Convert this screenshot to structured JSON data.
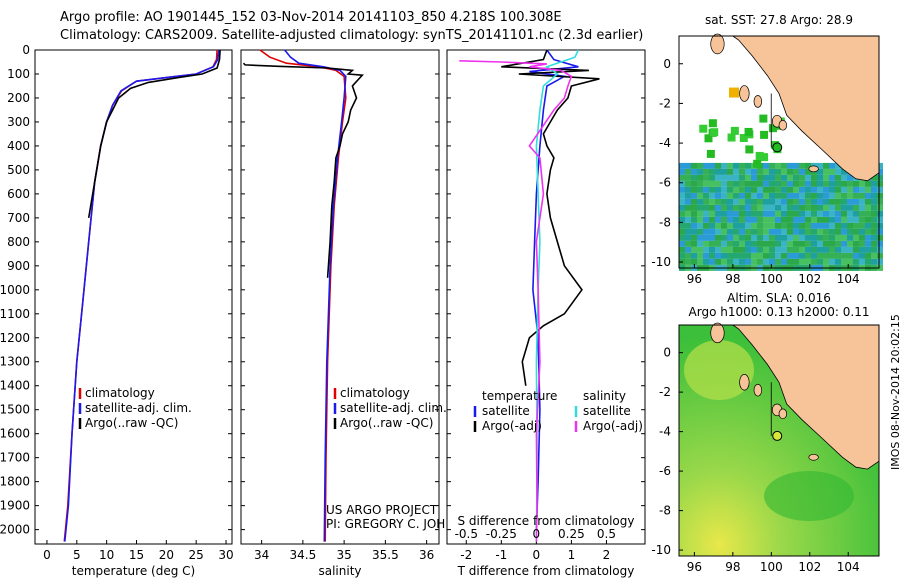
{
  "header": {
    "line1": "Argo profile: AO 1901445_152 03-Nov-2014 20141103_850 4.218S 100.308E",
    "line2": "Climatology: CARS2009. Satellite-adjusted climatology: synTS_20141101.nc (2.3d earlier)"
  },
  "stamp": "IMOS 08-Nov-2014 20:02:15",
  "colors": {
    "climatology": "#e00000",
    "satellite": "#1a1aee",
    "argo": "#000000",
    "sal_sat": "#33dddd",
    "sal_argo": "#ee33ee",
    "land": "#f7c49a"
  },
  "chart_data": [
    {
      "type": "line",
      "name": "temperature-profile",
      "xlabel": "temperature (deg C)",
      "ylabel": "",
      "xlim": [
        -2,
        31
      ],
      "ylim": [
        2060,
        0
      ],
      "xticks": [
        0,
        5,
        10,
        15,
        20,
        25,
        30
      ],
      "yticks": [
        0,
        100,
        200,
        300,
        400,
        500,
        600,
        700,
        800,
        900,
        1000,
        1100,
        1200,
        1300,
        1400,
        1500,
        1600,
        1700,
        1800,
        1900,
        2000
      ],
      "legend": [
        "climatology",
        "satellite-adj. clim.",
        "Argo(..raw -QC)"
      ],
      "series": [
        {
          "name": "climatology",
          "color": "#e00000",
          "x": [
            28.5,
            28.4,
            27.8,
            25,
            20,
            15,
            12.5,
            11,
            10,
            9,
            8,
            7,
            6,
            5,
            4.2,
            3.5,
            2.9
          ],
          "depth": [
            0,
            40,
            70,
            100,
            115,
            130,
            170,
            230,
            300,
            400,
            550,
            800,
            1050,
            1300,
            1600,
            1900,
            2050
          ]
        },
        {
          "name": "satellite-adj. clim.",
          "color": "#1a1aee",
          "x": [
            28.8,
            28.6,
            27.9,
            25,
            20,
            15,
            12.4,
            11,
            10,
            9,
            8,
            7,
            6,
            5,
            4.2,
            3.6,
            3.0
          ],
          "depth": [
            0,
            40,
            70,
            100,
            115,
            130,
            170,
            230,
            300,
            400,
            550,
            800,
            1050,
            1300,
            1600,
            1900,
            2050
          ]
        },
        {
          "name": "Argo(..raw -QC)",
          "color": "#000000",
          "x": [
            29,
            28.9,
            28.5,
            26,
            22,
            17,
            14,
            12,
            11,
            10,
            9,
            8,
            7
          ],
          "depth": [
            0,
            40,
            75,
            100,
            115,
            135,
            160,
            200,
            250,
            300,
            400,
            550,
            700
          ]
        }
      ]
    },
    {
      "type": "line",
      "name": "salinity-profile",
      "xlabel": "salinity",
      "xlim": [
        33.75,
        36.15
      ],
      "ylim": [
        2060,
        0
      ],
      "xticks": [
        34,
        34.5,
        35,
        35.5,
        36
      ],
      "legend": [
        "climatology",
        "satellite-adj. clim.",
        "Argo(..raw -QC)"
      ],
      "annotation": [
        "US ARGO PROJECT",
        "PI: GREGORY C. JOHNSON"
      ],
      "series": [
        {
          "name": "climatology",
          "color": "#e00000",
          "x": [
            33.98,
            34.1,
            34.3,
            34.7,
            34.9,
            35.0,
            35.02,
            34.98,
            34.93,
            34.88,
            34.84,
            34.8,
            34.78,
            34.77
          ],
          "depth": [
            0,
            30,
            55,
            70,
            85,
            110,
            200,
            300,
            450,
            650,
            900,
            1300,
            1700,
            2050
          ]
        },
        {
          "name": "satellite-adj. clim.",
          "color": "#1a1aee",
          "x": [
            34.28,
            34.35,
            34.45,
            34.75,
            34.95,
            35.02,
            35.0,
            34.97,
            34.92,
            34.87,
            34.83,
            34.79,
            34.77,
            34.76
          ],
          "depth": [
            0,
            30,
            55,
            70,
            85,
            110,
            200,
            300,
            450,
            650,
            900,
            1300,
            1700,
            2050
          ]
        },
        {
          "name": "Argo(..raw -QC)",
          "color": "#000000",
          "x": [
            33.78,
            33.8,
            34.2,
            34.8,
            35.1,
            35.05,
            35.22,
            35.1,
            35.15,
            35.08,
            35.05,
            34.98,
            34.95,
            34.9,
            34.88,
            34.85,
            34.83,
            34.8
          ],
          "depth": [
            55,
            62,
            68,
            75,
            85,
            100,
            105,
            150,
            200,
            250,
            300,
            350,
            400,
            450,
            550,
            650,
            800,
            950
          ]
        }
      ]
    },
    {
      "type": "line",
      "name": "difference-profile",
      "xlabel": "T difference from climatology",
      "xlabel2": "S difference from climatology",
      "xlim": [
        -2.55,
        3.1
      ],
      "ylim": [
        2060,
        0
      ],
      "xticks": [
        -2,
        -1,
        0,
        1,
        2
      ],
      "s_ticks": [
        "-0.5",
        "-0.25",
        "0",
        "0.25",
        "0.5"
      ],
      "legend_headers": [
        "temperature",
        "salinity"
      ],
      "legend": [
        "satellite",
        "Argo(-adj)",
        "satellite",
        "Argo(-adj)"
      ],
      "series": [
        {
          "name": "temperature satellite",
          "color": "#1a1aee",
          "x": [
            0.3,
            0.5,
            1.2,
            -0.2,
            0.8,
            0.3,
            0.2,
            0.1,
            0,
            -0.05,
            -0.1,
            0.05,
            0.1,
            0.05,
            0
          ],
          "depth": [
            0,
            40,
            70,
            90,
            110,
            150,
            250,
            400,
            600,
            800,
            1000,
            1200,
            1500,
            1800,
            2000
          ]
        },
        {
          "name": "temperature Argo(-adj)",
          "color": "#000000",
          "x": [
            0.3,
            0.2,
            -1.0,
            1.5,
            -0.5,
            1.8,
            1.0,
            0.9,
            0.6,
            0.4,
            0.2,
            0.3,
            0.5,
            0.4,
            0.3,
            0.4,
            0.8,
            1.3,
            0.8,
            0.2,
            -0.2,
            -0.4,
            -0.3
          ],
          "depth": [
            0,
            40,
            70,
            85,
            100,
            120,
            150,
            200,
            250,
            300,
            350,
            400,
            450,
            500,
            600,
            700,
            900,
            1000,
            1100,
            1150,
            1200,
            1300,
            1400
          ]
        },
        {
          "name": "salinity satellite",
          "color": "#33dddd",
          "x": [
            1.2,
            1.1,
            0.3,
            0.6,
            0.2,
            0.1,
            0,
            0.05,
            0.1,
            0.05,
            0,
            0.02,
            0
          ],
          "depth": [
            0,
            30,
            70,
            100,
            150,
            250,
            400,
            600,
            800,
            1000,
            1300,
            1700,
            2050
          ]
        },
        {
          "name": "salinity Argo(-adj)",
          "color": "#ee33ee",
          "x": [
            -2.2,
            -1.0,
            0.3,
            -0.2,
            0.7,
            1.0,
            0.9,
            0.8,
            0.5,
            -0.2,
            0.1,
            0.2,
            0,
            0.05,
            0.1,
            0,
            0.02,
            0
          ],
          "depth": [
            45,
            50,
            58,
            70,
            85,
            110,
            150,
            200,
            250,
            400,
            450,
            600,
            800,
            1000,
            1300,
            1600,
            1900,
            2050
          ]
        }
      ]
    }
  ],
  "maps": [
    {
      "title": "sat. SST: 27.8  Argo: 28.9",
      "xticks": [
        "96",
        "98",
        "100",
        "102",
        "104"
      ],
      "yticks": [
        "0",
        "-2",
        "-4",
        "-6",
        "-8",
        "-10"
      ]
    },
    {
      "title1": "Altim. SLA: 0.016",
      "title2": "Argo h1000: 0.13 h2000: 0.11",
      "xticks": [
        "96",
        "98",
        "100",
        "102",
        "104"
      ],
      "yticks": [
        "0",
        "-2",
        "-4",
        "-6",
        "-8",
        "-10"
      ]
    }
  ]
}
